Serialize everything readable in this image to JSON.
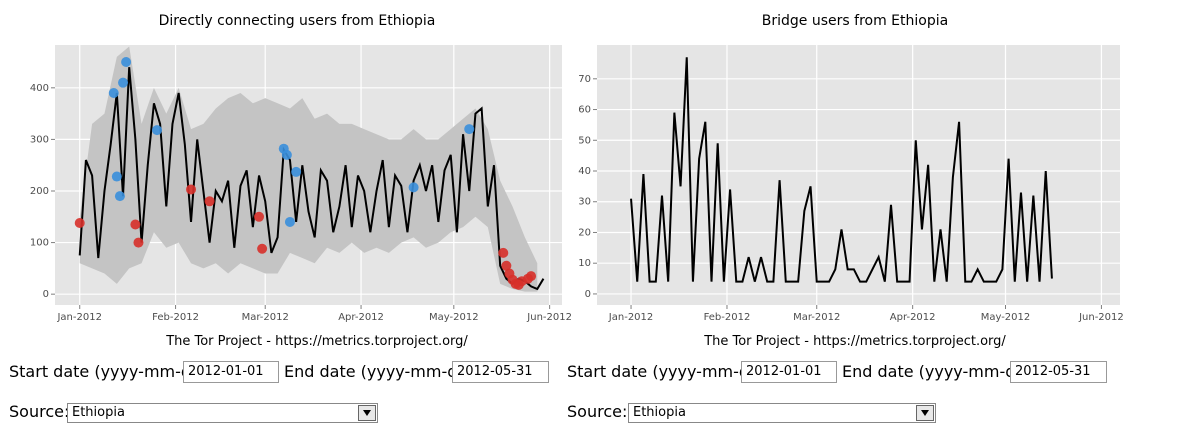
{
  "chart_data": [
    {
      "type": "line",
      "title": "Directly connecting users from Ethiopia",
      "xlim": [
        -8,
        156
      ],
      "ylim": [
        -21,
        483
      ],
      "xticks": [
        {
          "value": 0,
          "label": "Jan-2012"
        },
        {
          "value": 31,
          "label": "Feb-2012"
        },
        {
          "value": 60,
          "label": "Mar-2012"
        },
        {
          "value": 91,
          "label": "Apr-2012"
        },
        {
          "value": 121,
          "label": "May-2012"
        },
        {
          "value": 152,
          "label": "Jun-2012"
        }
      ],
      "yticks": [
        0,
        100,
        200,
        300,
        400
      ],
      "grid": true,
      "x": [
        0,
        2,
        4,
        6,
        8,
        10,
        12,
        14,
        16,
        18,
        20,
        22,
        24,
        26,
        28,
        30,
        32,
        34,
        36,
        38,
        40,
        42,
        44,
        46,
        48,
        50,
        52,
        54,
        56,
        58,
        60,
        62,
        64,
        66,
        68,
        70,
        72,
        74,
        76,
        78,
        80,
        82,
        84,
        86,
        88,
        90,
        92,
        94,
        96,
        98,
        100,
        102,
        104,
        106,
        108,
        110,
        112,
        114,
        116,
        118,
        120,
        122,
        124,
        126,
        128,
        130,
        132,
        134,
        136,
        138,
        140,
        142,
        144,
        146,
        148,
        150
      ],
      "series": [
        {
          "color": "#000000",
          "values": [
            75,
            260,
            230,
            70,
            200,
            290,
            390,
            190,
            440,
            300,
            100,
            250,
            370,
            330,
            170,
            330,
            390,
            290,
            140,
            300,
            200,
            100,
            200,
            180,
            220,
            90,
            210,
            240,
            130,
            230,
            180,
            80,
            110,
            280,
            260,
            140,
            250,
            160,
            110,
            240,
            220,
            120,
            170,
            250,
            130,
            230,
            200,
            120,
            200,
            260,
            130,
            230,
            210,
            120,
            220,
            250,
            200,
            250,
            140,
            240,
            270,
            120,
            310,
            200,
            350,
            360,
            170,
            250,
            55,
            30,
            20,
            30,
            25,
            15,
            10,
            30
          ]
        }
      ],
      "band": {
        "color": "#c4c4c4",
        "x": [
          0,
          4,
          8,
          12,
          16,
          20,
          24,
          28,
          32,
          36,
          40,
          44,
          48,
          52,
          56,
          60,
          64,
          68,
          72,
          76,
          80,
          84,
          88,
          92,
          96,
          100,
          104,
          108,
          112,
          116,
          120,
          124,
          128,
          132,
          136,
          140,
          144,
          148
        ],
        "upper": [
          150,
          330,
          350,
          460,
          480,
          330,
          400,
          350,
          400,
          320,
          330,
          360,
          380,
          390,
          370,
          380,
          370,
          360,
          380,
          340,
          350,
          330,
          330,
          320,
          310,
          300,
          300,
          320,
          300,
          300,
          320,
          340,
          360,
          320,
          220,
          170,
          110,
          60
        ],
        "lower": [
          60,
          50,
          40,
          20,
          50,
          60,
          120,
          90,
          100,
          60,
          50,
          60,
          40,
          60,
          50,
          40,
          40,
          80,
          70,
          60,
          90,
          80,
          100,
          80,
          90,
          80,
          100,
          110,
          90,
          100,
          120,
          130,
          150,
          130,
          20,
          10,
          5,
          5
        ]
      },
      "points": [
        {
          "color": "#d7302a",
          "x": [
            0,
            18,
            19,
            36,
            42,
            58,
            59,
            137,
            138,
            139,
            140,
            141,
            142,
            143,
            145,
            146
          ],
          "values": [
            138,
            135,
            100,
            203,
            180,
            150,
            88,
            80,
            55,
            40,
            28,
            20,
            18,
            25,
            30,
            35
          ]
        },
        {
          "color": "#3a8fdc",
          "x": [
            11,
            12,
            13,
            14,
            15,
            25,
            66,
            67,
            68,
            70,
            108,
            126
          ],
          "values": [
            390,
            228,
            190,
            410,
            450,
            318,
            282,
            270,
            140,
            237,
            207,
            320
          ]
        }
      ]
    },
    {
      "type": "line",
      "title": "Bridge users from Ethiopia",
      "xlim": [
        -11,
        158
      ],
      "ylim": [
        -3.6,
        81
      ],
      "xticks": [
        {
          "value": 0,
          "label": "Jan-2012"
        },
        {
          "value": 31,
          "label": "Feb-2012"
        },
        {
          "value": 60,
          "label": "Mar-2012"
        },
        {
          "value": 91,
          "label": "Apr-2012"
        },
        {
          "value": 121,
          "label": "May-2012"
        },
        {
          "value": 152,
          "label": "Jun-2012"
        }
      ],
      "yticks": [
        0,
        10,
        20,
        30,
        40,
        50,
        60,
        70
      ],
      "grid": true,
      "x": [
        0,
        2,
        4,
        6,
        8,
        10,
        12,
        14,
        16,
        18,
        20,
        22,
        24,
        26,
        28,
        30,
        32,
        34,
        36,
        38,
        40,
        42,
        44,
        46,
        48,
        50,
        52,
        54,
        56,
        58,
        60,
        62,
        64,
        66,
        68,
        70,
        72,
        74,
        76,
        78,
        80,
        82,
        84,
        86,
        88,
        90,
        92,
        94,
        96,
        98,
        100,
        102,
        104,
        106,
        108,
        110,
        112,
        114,
        116,
        118,
        120,
        122,
        124,
        126,
        128,
        130,
        132,
        134,
        136
      ],
      "series": [
        {
          "color": "#000000",
          "values": [
            31,
            4,
            39,
            4,
            4,
            32,
            4,
            59,
            35,
            77,
            4,
            44,
            56,
            4,
            49,
            4,
            34,
            4,
            4,
            12,
            4,
            12,
            4,
            4,
            37,
            4,
            4,
            4,
            27,
            35,
            4,
            4,
            4,
            8,
            21,
            8,
            8,
            4,
            4,
            8,
            12,
            4,
            29,
            4,
            4,
            4,
            50,
            21,
            42,
            4,
            21,
            4,
            38,
            56,
            4,
            4,
            8,
            4,
            4,
            4,
            8,
            44,
            4,
            33,
            4,
            32,
            4,
            40,
            5
          ]
        }
      ]
    }
  ],
  "panels": [
    {
      "caption": "The Tor Project - https://metrics.torproject.org/",
      "start_label": "Start date (yyyy-mm-dd):",
      "start_value": "2012-01-01",
      "end_label": "End date (yyyy-mm-dd):",
      "end_value": "2012-05-31",
      "source_label": "Source:",
      "source_value": "Ethiopia"
    },
    {
      "caption": "The Tor Project - https://metrics.torproject.org/",
      "start_label": "Start date (yyyy-mm-dd):",
      "start_value": "2012-01-01",
      "end_label": "End date (yyyy-mm-dd):",
      "end_value": "2012-05-31",
      "source_label": "Source:",
      "source_value": "Ethiopia"
    }
  ]
}
